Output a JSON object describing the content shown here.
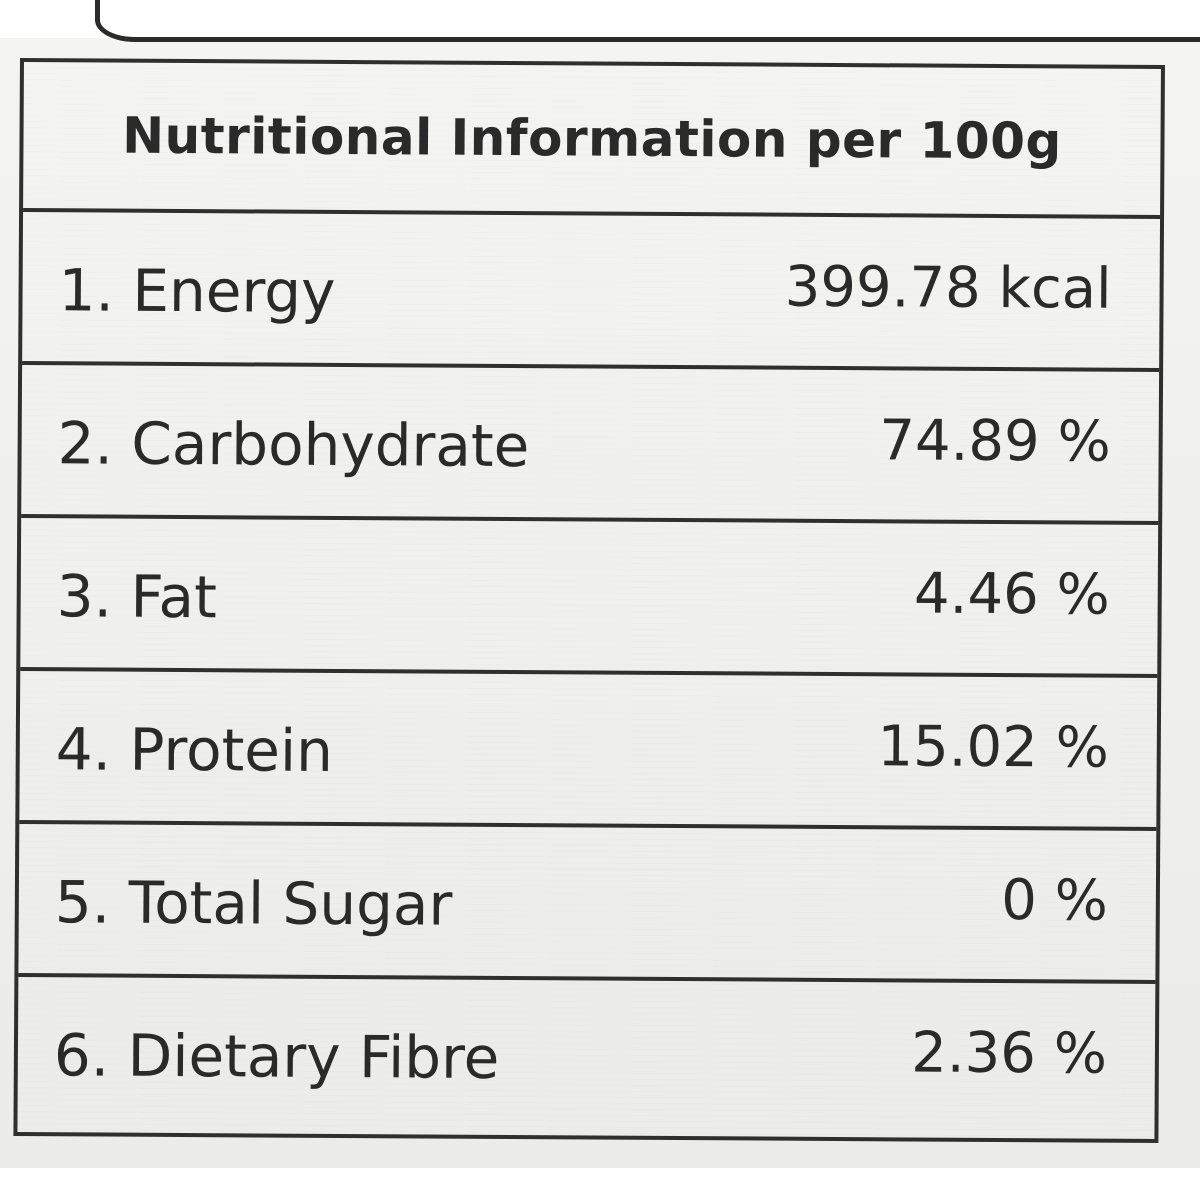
{
  "table": {
    "title": "Nutritional Information per 100g",
    "rows": [
      {
        "label": "1.  Energy",
        "value": "399.78 kcal"
      },
      {
        "label": "2. Carbohydrate",
        "value": "74.89 %"
      },
      {
        "label": "3. Fat",
        "value": "4.46 %"
      },
      {
        "label": "4. Protein",
        "value": "15.02 %"
      },
      {
        "label": "5. Total Sugar",
        "value": "0 %"
      },
      {
        "label": "6. Dietary Fibre",
        "value": "2.36 %"
      }
    ]
  },
  "colors": {
    "background": "#efefed",
    "ink": "#2a2a2a"
  }
}
